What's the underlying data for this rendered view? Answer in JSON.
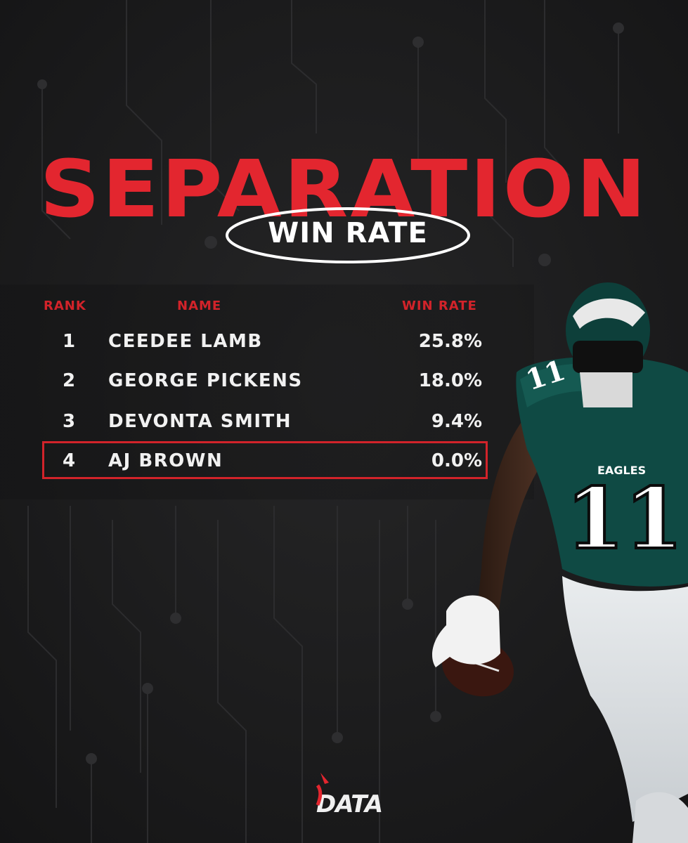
{
  "graphic": {
    "title": "SEPARATION",
    "subtitle": "WIN RATE",
    "accent_color": "#e3262f",
    "background_color": "#1b1b1c"
  },
  "table": {
    "headers": {
      "rank": "RANK",
      "name": "NAME",
      "win_rate": "WIN RATE"
    },
    "rows": [
      {
        "rank": "1",
        "name": "CEEDEE LAMB",
        "win_rate": "25.8%",
        "highlighted": false
      },
      {
        "rank": "2",
        "name": "GEORGE PICKENS",
        "win_rate": "18.0%",
        "highlighted": false
      },
      {
        "rank": "3",
        "name": "DEVONTA SMITH",
        "win_rate": "9.4%",
        "highlighted": false
      },
      {
        "rank": "4",
        "name": "AJ BROWN",
        "win_rate": "0.0%",
        "highlighted": true
      }
    ]
  },
  "player_photo": {
    "jersey_number": "11",
    "jersey_text": "EAGLES",
    "jersey_color": "#0f4a44",
    "icon": "football-player-image"
  },
  "brand_logo": {
    "text": "DATA",
    "icon": "data-logo-icon"
  }
}
